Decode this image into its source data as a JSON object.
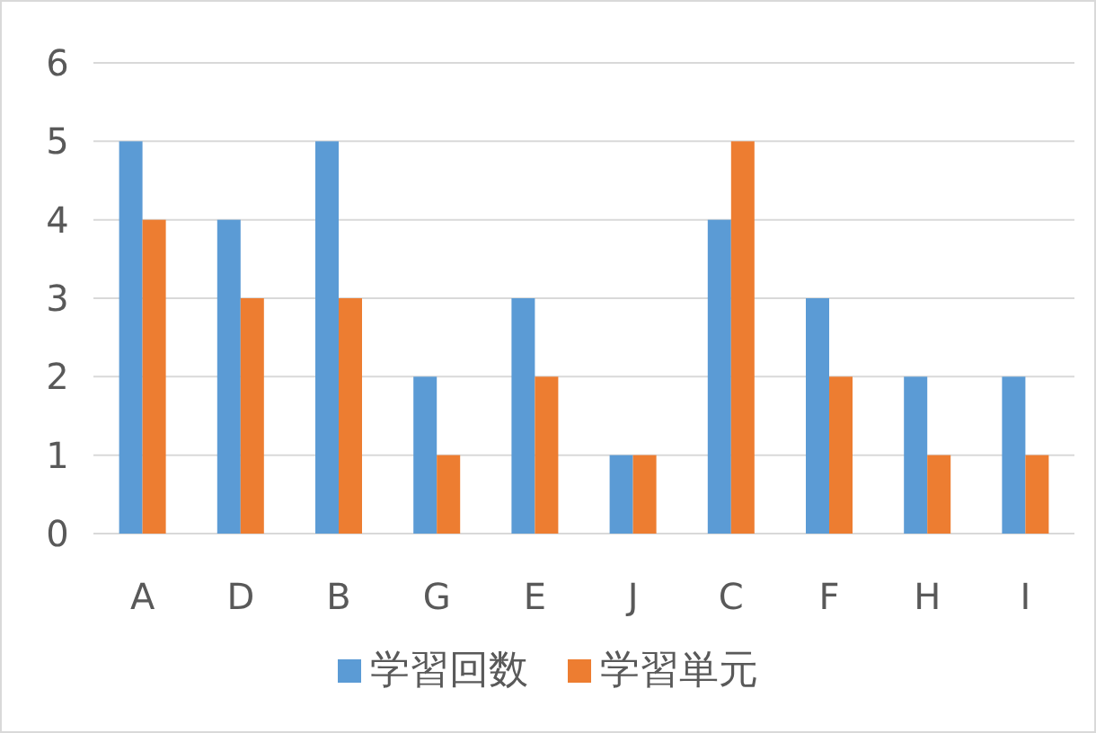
{
  "chart_data": {
    "type": "bar",
    "categories": [
      "A",
      "D",
      "B",
      "G",
      "E",
      "J",
      "C",
      "F",
      "H",
      "I"
    ],
    "series": [
      {
        "name": "学習回数",
        "color": "#5b9bd5",
        "values": [
          5,
          4,
          5,
          2,
          3,
          1,
          4,
          3,
          2,
          2
        ]
      },
      {
        "name": "学習単元",
        "color": "#ed7d31",
        "values": [
          4,
          3,
          3,
          1,
          2,
          1,
          5,
          2,
          1,
          1
        ]
      }
    ],
    "ylim": [
      0,
      6
    ],
    "yticks": [
      0,
      1,
      2,
      3,
      4,
      5,
      6
    ],
    "grid": "y",
    "legend": "bottom"
  }
}
